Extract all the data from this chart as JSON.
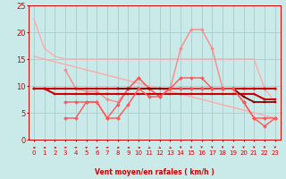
{
  "title": "",
  "xlabel": "Vent moyen/en rafales ( km/h )",
  "xlim": [
    -0.5,
    23.5
  ],
  "ylim": [
    0,
    25
  ],
  "yticks": [
    0,
    5,
    10,
    15,
    20,
    25
  ],
  "xticks": [
    0,
    1,
    2,
    3,
    4,
    5,
    6,
    7,
    8,
    9,
    10,
    11,
    12,
    13,
    14,
    15,
    16,
    17,
    18,
    19,
    20,
    21,
    22,
    23
  ],
  "bg_color": "#caeaea",
  "grid_color": "#aacccc",
  "series": [
    {
      "x": [
        0,
        1,
        2,
        3,
        4,
        5,
        6,
        7,
        8,
        9,
        10,
        11,
        12,
        13,
        14,
        15,
        16,
        17,
        18,
        19,
        20,
        21,
        22,
        23
      ],
      "y": [
        22.5,
        17,
        15.5,
        15,
        15,
        15,
        15,
        15,
        15,
        15,
        15,
        15,
        15,
        15,
        15,
        15,
        15,
        15,
        15,
        15,
        15,
        15,
        9.5,
        7
      ],
      "color": "#ffaaaa",
      "lw": 1.0,
      "marker": null,
      "ms": 0
    },
    {
      "x": [
        0,
        1,
        2,
        3,
        4,
        5,
        6,
        7,
        8,
        9,
        10,
        11,
        12,
        13,
        14,
        15,
        16,
        17,
        18,
        19,
        20,
        21,
        22,
        23
      ],
      "y": [
        15.5,
        15,
        14.5,
        14,
        13.5,
        13,
        12.5,
        12,
        11.5,
        11,
        10.5,
        10,
        9.5,
        9,
        8.5,
        8,
        7.5,
        7,
        6.5,
        6,
        5.5,
        5,
        4.5,
        4
      ],
      "color": "#ffaaaa",
      "lw": 1.0,
      "marker": null,
      "ms": 0
    },
    {
      "x": [
        3,
        4,
        5,
        6,
        7,
        8,
        9,
        10,
        11,
        12,
        13,
        14,
        15,
        16,
        17,
        18,
        19,
        20,
        21,
        22,
        23
      ],
      "y": [
        13,
        9.5,
        9,
        9,
        7.5,
        7,
        9.5,
        11.5,
        9.5,
        8,
        9.5,
        17,
        20.5,
        20.5,
        17,
        9.5,
        9.5,
        9.5,
        9.5,
        9.5,
        9.5
      ],
      "color": "#ff8888",
      "lw": 1.0,
      "marker": "D",
      "ms": 2.0
    },
    {
      "x": [
        3,
        4,
        5,
        6,
        7,
        8,
        9,
        10,
        11,
        12,
        13,
        14,
        15,
        16,
        17,
        18,
        19,
        20,
        21,
        22,
        23
      ],
      "y": [
        7,
        7,
        7,
        7,
        4,
        6.5,
        9.5,
        11.5,
        9.5,
        8,
        9.5,
        11.5,
        11.5,
        11.5,
        9.5,
        9.5,
        9.5,
        7,
        4,
        2.5,
        4
      ],
      "color": "#ff5555",
      "lw": 1.0,
      "marker": "D",
      "ms": 2.0
    },
    {
      "x": [
        0,
        1,
        2,
        3,
        4,
        5,
        6,
        7,
        8,
        9,
        10,
        11,
        12,
        13,
        14,
        15,
        16,
        17,
        18,
        19,
        20,
        21,
        22,
        23
      ],
      "y": [
        9.5,
        9.5,
        9.5,
        9.5,
        9.5,
        9.5,
        9.5,
        9.5,
        9.5,
        9.5,
        9.5,
        9.5,
        9.5,
        9.5,
        9.5,
        9.5,
        9.5,
        9.5,
        9.5,
        9.5,
        9.5,
        9.5,
        9.5,
        9.5
      ],
      "color": "#cc0000",
      "lw": 1.5,
      "marker": "s",
      "ms": 2.0
    },
    {
      "x": [
        0,
        1,
        2,
        3,
        4,
        5,
        6,
        7,
        8,
        9,
        10,
        11,
        12,
        13,
        14,
        15,
        16,
        17,
        18,
        19,
        20,
        21,
        22,
        23
      ],
      "y": [
        9.5,
        9.5,
        8.5,
        8.5,
        8.5,
        8.5,
        8.5,
        8.5,
        8.5,
        8.5,
        8.5,
        8.5,
        8.5,
        8.5,
        8.5,
        8.5,
        8.5,
        8.5,
        8.5,
        8.5,
        8.5,
        8.5,
        7.5,
        7.5
      ],
      "color": "#cc0000",
      "lw": 1.5,
      "marker": "s",
      "ms": 2.0
    },
    {
      "x": [
        8,
        9,
        10,
        11,
        12,
        13,
        14,
        15,
        16,
        17,
        18,
        19,
        20,
        21,
        22,
        23
      ],
      "y": [
        9.5,
        9.5,
        9.5,
        9.5,
        9.5,
        9.5,
        9.5,
        9.5,
        9.5,
        9.5,
        9.5,
        9.5,
        8,
        7,
        7,
        7
      ],
      "color": "#880000",
      "lw": 1.3,
      "marker": "s",
      "ms": 2.0
    },
    {
      "x": [
        3,
        4,
        5,
        6,
        7,
        8,
        9,
        10,
        11,
        12,
        13,
        14,
        15,
        16,
        17,
        18,
        19,
        20,
        21,
        22,
        23
      ],
      "y": [
        4,
        4,
        7,
        7,
        4,
        4,
        6.5,
        9.5,
        8,
        8,
        9.5,
        9.5,
        9.5,
        9.5,
        9.5,
        9.5,
        9.5,
        7,
        4,
        4,
        4
      ],
      "color": "#ff5555",
      "lw": 1.0,
      "marker": "D",
      "ms": 2.0
    }
  ],
  "wind_directions": [
    0,
    0,
    0,
    45,
    45,
    45,
    45,
    45,
    0,
    0,
    0,
    315,
    315,
    315,
    270,
    270,
    270,
    270,
    270,
    270,
    270,
    270,
    270,
    270
  ],
  "arrow_color": "#cc0000"
}
